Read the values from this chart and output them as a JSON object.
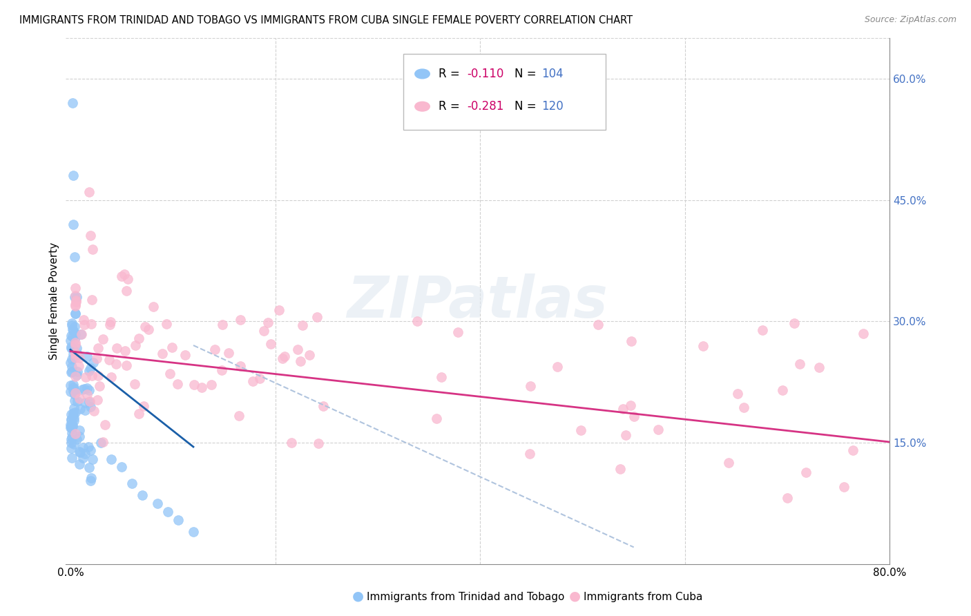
{
  "title": "IMMIGRANTS FROM TRINIDAD AND TOBAGO VS IMMIGRANTS FROM CUBA SINGLE FEMALE POVERTY CORRELATION CHART",
  "source": "Source: ZipAtlas.com",
  "ylabel": "Single Female Poverty",
  "xlim": [
    0.0,
    0.8
  ],
  "ylim": [
    0.0,
    0.65
  ],
  "xticks": [
    0.0,
    0.2,
    0.4,
    0.6,
    0.8
  ],
  "xticklabels": [
    "0.0%",
    "",
    "",
    "",
    "80.0%"
  ],
  "yticks_right": [
    0.15,
    0.3,
    0.45,
    0.6
  ],
  "yticklabels_right": [
    "15.0%",
    "30.0%",
    "45.0%",
    "60.0%"
  ],
  "tt_color": "#92C5F7",
  "cuba_color": "#F9B8CF",
  "tt_line_color": "#1a5fa8",
  "cuba_line_color": "#d63384",
  "dash_line_color": "#b0c4de",
  "right_axis_color": "#4472C4",
  "grid_color": "#d0d0d0",
  "bg_color": "#ffffff",
  "tt_R": -0.11,
  "tt_N": 104,
  "cuba_R": -0.281,
  "cuba_N": 120,
  "R_color": "#d63384",
  "N_color": "#4472C4",
  "watermark": "ZIPatlas",
  "legend_R_color": "#cc0066",
  "legend_N_color": "#4472C4"
}
